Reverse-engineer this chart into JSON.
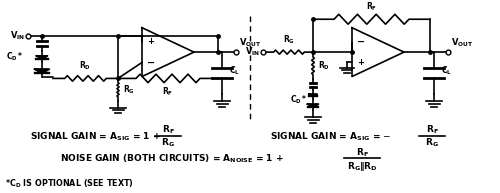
{
  "bg_color": "#ffffff",
  "line_color": "#000000",
  "fig_width": 5.0,
  "fig_height": 1.93,
  "dpi": 100
}
